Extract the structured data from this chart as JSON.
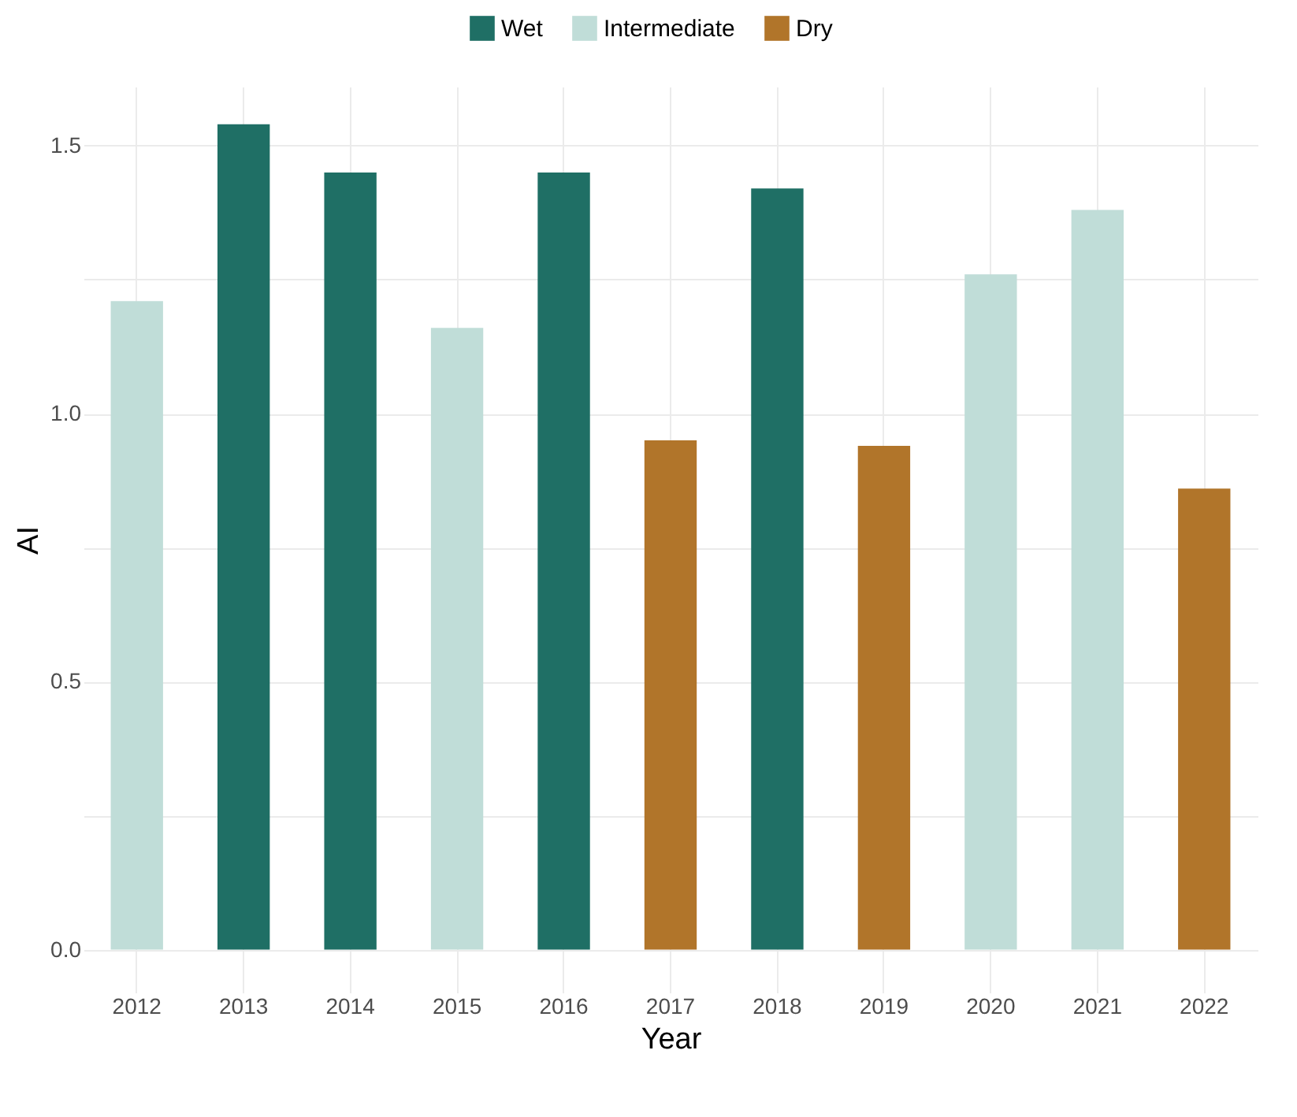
{
  "chart_data": {
    "type": "bar",
    "xlabel": "Year",
    "ylabel": "AI",
    "categories": [
      "2012",
      "2013",
      "2014",
      "2015",
      "2016",
      "2017",
      "2018",
      "2019",
      "2020",
      "2021",
      "2022"
    ],
    "series": [
      {
        "name": "Wet",
        "color": "#1f6f65",
        "values": [
          null,
          1.54,
          1.45,
          null,
          1.45,
          null,
          1.42,
          null,
          null,
          null,
          null
        ]
      },
      {
        "name": "Intermediate",
        "color": "#c0ddd8",
        "values": [
          1.21,
          null,
          null,
          1.16,
          null,
          null,
          null,
          null,
          1.26,
          1.38,
          null
        ]
      },
      {
        "name": "Dry",
        "color": "#b1752a",
        "values": [
          null,
          null,
          null,
          null,
          null,
          0.95,
          null,
          0.94,
          null,
          null,
          0.86
        ]
      }
    ],
    "ylim": [
      -0.08,
      1.61
    ],
    "yticks": [
      {
        "value": 0,
        "label": "0.0"
      },
      {
        "value": 0.25,
        "label": null
      },
      0.5,
      {
        "value": 0.75,
        "label": null
      },
      {
        "value": 1,
        "label": "1.0"
      },
      {
        "value": 1.25,
        "label": null
      },
      1.5
    ],
    "grid": true,
    "legend": "top"
  }
}
